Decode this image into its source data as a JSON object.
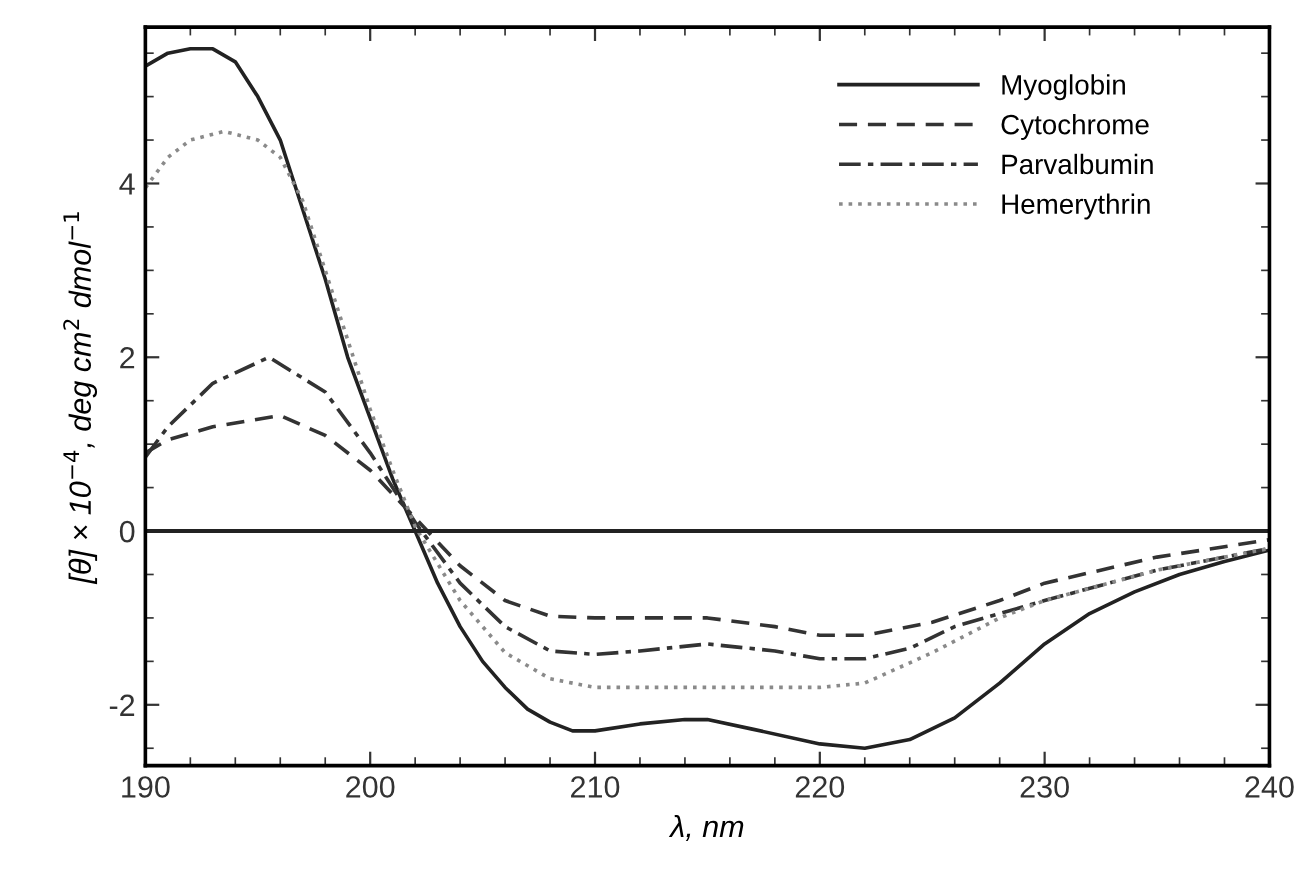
{
  "chart_data": {
    "type": "line",
    "xlabel": "λ, nm",
    "ylabel": "[θ] × 10$^{−4}$, deg cm$^{2}$ dmol$^{−1}$",
    "xlim": [
      190,
      240
    ],
    "ylim": [
      -2.7,
      5.8
    ],
    "xticks": [
      190,
      200,
      210,
      220,
      230,
      240
    ],
    "yticks": [
      -2,
      0,
      2,
      4
    ],
    "legend": "top right",
    "grid": false,
    "ref_lines": [
      {
        "axis": "y",
        "value": 0,
        "color": "#222222",
        "line_style": "solid"
      }
    ],
    "series": [
      {
        "name": "Myoglobin",
        "color": "#222222",
        "line_style": "solid",
        "x": [
          190,
          191,
          192,
          193,
          194,
          195,
          196,
          197,
          198,
          199,
          200,
          201,
          202,
          203,
          204,
          205,
          206,
          207,
          208,
          209,
          210,
          212,
          214,
          215,
          217,
          220,
          222,
          224,
          226,
          228,
          230,
          232,
          234,
          236,
          238,
          240
        ],
        "values": [
          5.35,
          5.5,
          5.55,
          5.55,
          5.4,
          5.0,
          4.5,
          3.7,
          2.9,
          2.0,
          1.3,
          0.6,
          0.0,
          -0.6,
          -1.1,
          -1.5,
          -1.8,
          -2.05,
          -2.2,
          -2.3,
          -2.3,
          -2.22,
          -2.17,
          -2.17,
          -2.28,
          -2.45,
          -2.5,
          -2.4,
          -2.15,
          -1.75,
          -1.3,
          -0.95,
          -0.7,
          -0.5,
          -0.35,
          -0.22
        ]
      },
      {
        "name": "Cytochrome",
        "color": "#333333",
        "line_style": "dashed",
        "x": [
          190,
          191,
          193,
          196,
          198,
          200,
          202,
          204,
          206,
          208,
          210,
          215,
          218,
          220,
          222,
          225,
          228,
          230,
          235,
          240
        ],
        "values": [
          0.9,
          1.05,
          1.2,
          1.33,
          1.1,
          0.7,
          0.15,
          -0.4,
          -0.8,
          -0.98,
          -1.0,
          -1.0,
          -1.1,
          -1.2,
          -1.2,
          -1.05,
          -0.8,
          -0.6,
          -0.3,
          -0.1
        ]
      },
      {
        "name": "Parvalbumin",
        "color": "#333333",
        "line_style": "dashdot",
        "x": [
          190,
          191,
          193,
          195.5,
          198,
          200,
          202,
          204,
          206,
          208,
          210,
          212,
          215,
          218,
          220,
          222,
          224,
          226,
          230,
          235,
          240
        ],
        "values": [
          0.85,
          1.2,
          1.7,
          2.0,
          1.6,
          0.9,
          0.1,
          -0.6,
          -1.1,
          -1.38,
          -1.42,
          -1.38,
          -1.3,
          -1.38,
          -1.47,
          -1.47,
          -1.35,
          -1.1,
          -0.8,
          -0.45,
          -0.2
        ]
      },
      {
        "name": "Hemerythrin",
        "color": "#8a8a8a",
        "line_style": "dotted",
        "x": [
          190,
          191,
          192,
          193.5,
          195,
          196,
          197,
          198,
          199,
          200,
          201,
          202,
          204,
          206,
          208,
          210,
          215,
          220,
          222,
          225,
          228,
          230,
          235,
          240
        ],
        "values": [
          3.95,
          4.3,
          4.5,
          4.6,
          4.5,
          4.3,
          3.8,
          3.0,
          2.2,
          1.4,
          0.7,
          0.05,
          -0.8,
          -1.4,
          -1.7,
          -1.8,
          -1.8,
          -1.8,
          -1.75,
          -1.4,
          -1.0,
          -0.8,
          -0.45,
          -0.2
        ]
      }
    ]
  }
}
